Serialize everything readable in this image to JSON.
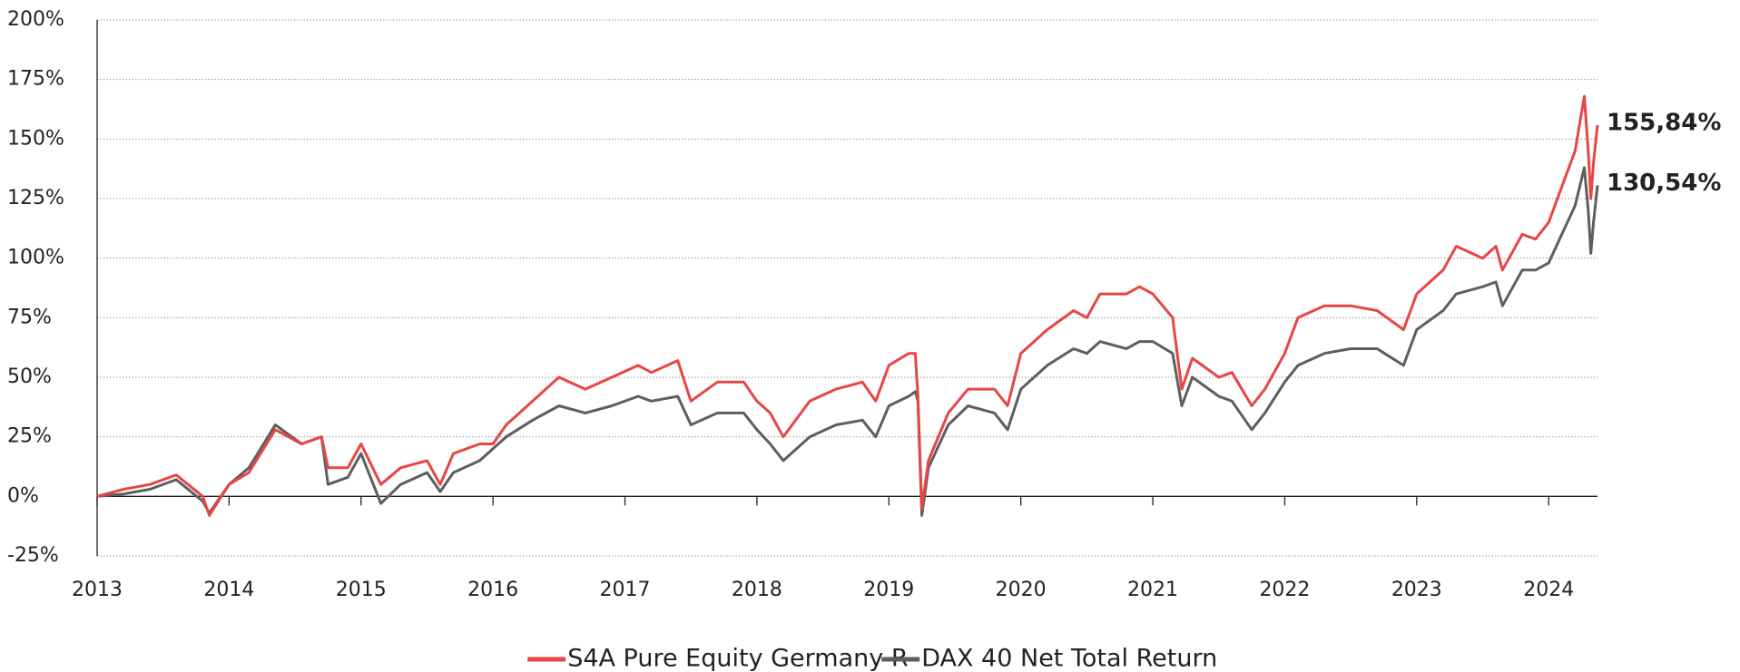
{
  "chart_data": {
    "type": "line",
    "x": [
      2013.0,
      2013.2,
      2013.4,
      2013.6,
      2013.8,
      2013.85,
      2014.0,
      2014.15,
      2014.35,
      2014.55,
      2014.7,
      2014.75,
      2014.9,
      2015.0,
      2015.15,
      2015.3,
      2015.5,
      2015.6,
      2015.7,
      2015.9,
      2016.0,
      2016.1,
      2016.3,
      2016.5,
      2016.7,
      2016.9,
      2017.1,
      2017.2,
      2017.4,
      2017.5,
      2017.7,
      2017.9,
      2018.0,
      2018.1,
      2018.2,
      2018.4,
      2018.6,
      2018.8,
      2018.9,
      2019.0,
      2019.15,
      2019.2,
      2019.22,
      2019.25,
      2019.3,
      2019.45,
      2019.6,
      2019.8,
      2019.9,
      2020.0,
      2020.2,
      2020.4,
      2020.5,
      2020.6,
      2020.8,
      2020.9,
      2021.0,
      2021.15,
      2021.22,
      2021.3,
      2021.5,
      2021.6,
      2021.75,
      2021.85,
      2022.0,
      2022.1,
      2022.3,
      2022.5,
      2022.7,
      2022.9,
      2023.0,
      2023.2,
      2023.3,
      2023.5,
      2023.6,
      2023.65,
      2023.8,
      2023.9,
      2024.0,
      2024.1,
      2024.2,
      2024.27,
      2024.3,
      2024.32,
      2024.34,
      2024.37
    ],
    "series": [
      {
        "name": "S4A Pure Equity Germany R",
        "color": "#e84545",
        "end_label": "155,84%",
        "values": [
          0,
          3,
          5,
          9,
          0,
          -8,
          5,
          10,
          28,
          22,
          25,
          12,
          12,
          22,
          5,
          12,
          15,
          5,
          18,
          22,
          22,
          30,
          40,
          50,
          45,
          50,
          55,
          52,
          57,
          40,
          48,
          48,
          40,
          35,
          25,
          40,
          45,
          48,
          40,
          55,
          60,
          60,
          42,
          -5,
          15,
          35,
          45,
          45,
          38,
          60,
          70,
          78,
          75,
          85,
          85,
          88,
          85,
          75,
          45,
          58,
          50,
          52,
          38,
          45,
          60,
          75,
          80,
          80,
          78,
          70,
          85,
          95,
          105,
          100,
          105,
          95,
          110,
          108,
          115,
          130,
          145,
          168,
          145,
          125,
          140,
          155.84
        ]
      },
      {
        "name": "DAX 40 Net Total Return",
        "color": "#5e5e5e",
        "end_label": "130,54%",
        "values": [
          0,
          1,
          3,
          7,
          -2,
          -7,
          5,
          12,
          30,
          22,
          25,
          5,
          8,
          18,
          -3,
          5,
          10,
          2,
          10,
          15,
          20,
          25,
          32,
          38,
          35,
          38,
          42,
          40,
          42,
          30,
          35,
          35,
          28,
          22,
          15,
          25,
          30,
          32,
          25,
          38,
          42,
          44,
          40,
          -8,
          12,
          30,
          38,
          35,
          28,
          45,
          55,
          62,
          60,
          65,
          62,
          65,
          65,
          60,
          38,
          50,
          42,
          40,
          28,
          35,
          48,
          55,
          60,
          62,
          62,
          55,
          70,
          78,
          85,
          88,
          90,
          80,
          95,
          95,
          98,
          110,
          122,
          138,
          120,
          102,
          115,
          130.54
        ]
      }
    ],
    "xlim": [
      2013,
      2024.37
    ],
    "xticks": [
      2013,
      2014,
      2015,
      2016,
      2017,
      2018,
      2019,
      2020,
      2021,
      2022,
      2023,
      2024
    ],
    "ylim": [
      -25,
      200
    ],
    "yticks": [
      {
        "value": -25,
        "label": "-25%"
      },
      {
        "value": 0,
        "label": "0%"
      },
      {
        "value": 25,
        "label": "25%"
      },
      {
        "value": 50,
        "label": "50%"
      },
      {
        "value": 75,
        "label": "75%"
      },
      {
        "value": 100,
        "label": "100%"
      },
      {
        "value": 125,
        "label": "125%"
      },
      {
        "value": 150,
        "label": "150%"
      },
      {
        "value": 175,
        "label": "175%"
      },
      {
        "value": 200,
        "label": "200%"
      }
    ],
    "grid": true,
    "legend": "bottom"
  }
}
